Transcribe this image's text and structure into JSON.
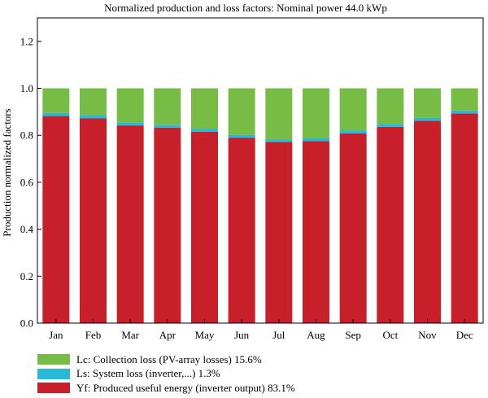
{
  "chart_data": {
    "type": "bar",
    "stacked": true,
    "title": "Normalized production and loss factors: Nominal power 44.0 kWp",
    "xlabel": "",
    "ylabel": "Production normalized factors",
    "ylim": [
      0,
      1.3
    ],
    "yticks": [
      "0.0",
      "0.2",
      "0.4",
      "0.6",
      "0.8",
      "1.0",
      "1.2"
    ],
    "grid": false,
    "legend_position": "bottom-left",
    "categories": [
      "Jan",
      "Feb",
      "Mar",
      "Apr",
      "May",
      "Jun",
      "Jul",
      "Aug",
      "Sep",
      "Oct",
      "Nov",
      "Dec"
    ],
    "series": [
      {
        "name": "Yf: Produced useful energy (inverter output) 83.1%",
        "color": "#c8202a",
        "values": [
          0.882,
          0.873,
          0.842,
          0.833,
          0.815,
          0.79,
          0.772,
          0.775,
          0.808,
          0.836,
          0.862,
          0.893
        ]
      },
      {
        "name": "Ls: System loss (inverter,...) 1.3%",
        "color": "#29b8d9",
        "values": [
          0.013,
          0.013,
          0.012,
          0.012,
          0.012,
          0.012,
          0.01,
          0.012,
          0.012,
          0.012,
          0.013,
          0.013
        ]
      },
      {
        "name": "Lc: Collection loss (PV-array losses) 15.6%",
        "color": "#77bd45",
        "values": [
          0.105,
          0.114,
          0.146,
          0.155,
          0.173,
          0.198,
          0.218,
          0.213,
          0.18,
          0.152,
          0.125,
          0.094
        ]
      }
    ],
    "legend": [
      {
        "label": "Lc: Collection loss (PV-array losses) 15.6%",
        "color": "#77bd45"
      },
      {
        "label": "Ls: System loss (inverter,...) 1.3%",
        "color": "#29b8d9"
      },
      {
        "label": "Yf: Produced useful energy (inverter output) 83.1%",
        "color": "#c8202a"
      }
    ]
  }
}
